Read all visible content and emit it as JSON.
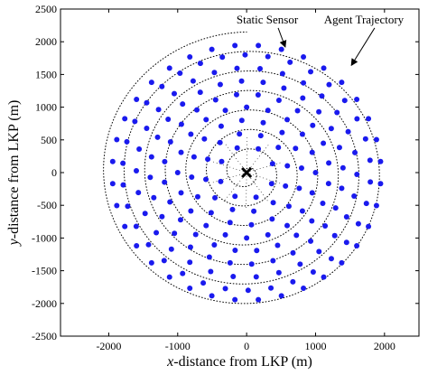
{
  "chart_data": {
    "type": "scatter",
    "xlabel_italic": "x",
    "xlabel_rest": "-distance from LKP (m)",
    "ylabel_italic": "y",
    "ylabel_rest": "-distance from LKP (m)",
    "xlim": [
      -2700,
      2500
    ],
    "ylim": [
      -2500,
      2500
    ],
    "xticks": [
      -2000,
      -1000,
      0,
      1000,
      2000
    ],
    "yticks": [
      -2500,
      -2000,
      -1500,
      -1000,
      -500,
      0,
      500,
      1000,
      1500,
      2000,
      2500
    ],
    "grid": false,
    "lkp": {
      "x": 0,
      "y": 0,
      "marker": "x"
    },
    "trajectory": {
      "style": "dotted",
      "spiral_start_radius": 60,
      "spiral_end_radius": 2150,
      "turns": 7,
      "start_angle_deg": 90
    },
    "sensors": {
      "color": "#1a1aee",
      "rings": [
        {
          "radius": 400,
          "count": 8,
          "offset_deg": 20
        },
        {
          "radius": 600,
          "count": 12,
          "offset_deg": 10
        },
        {
          "radius": 800,
          "count": 16,
          "offset_deg": 5
        },
        {
          "radius": 1000,
          "count": 20,
          "offset_deg": 0
        },
        {
          "radius": 1200,
          "count": 24,
          "offset_deg": 7
        },
        {
          "radius": 1400,
          "count": 28,
          "offset_deg": 3
        },
        {
          "radius": 1600,
          "count": 30,
          "offset_deg": 11
        },
        {
          "radius": 1800,
          "count": 34,
          "offset_deg": 6
        },
        {
          "radius": 1950,
          "count": 36,
          "offset_deg": 15
        }
      ]
    },
    "annotations": [
      {
        "text": "Static Sensor",
        "x": 300,
        "y": 2280,
        "arrow_to": [
          560,
          1920
        ]
      },
      {
        "text": "Agent Trajectory",
        "x": 1700,
        "y": 2280,
        "arrow_to": [
          1520,
          1640
        ]
      }
    ]
  }
}
